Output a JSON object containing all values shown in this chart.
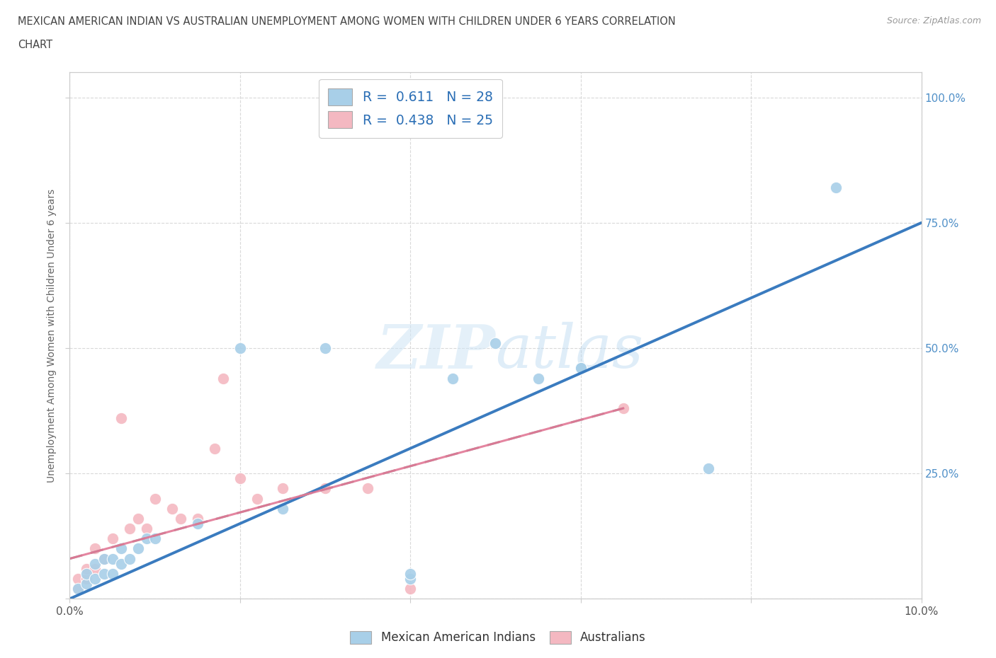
{
  "title_line1": "MEXICAN AMERICAN INDIAN VS AUSTRALIAN UNEMPLOYMENT AMONG WOMEN WITH CHILDREN UNDER 6 YEARS CORRELATION",
  "title_line2": "CHART",
  "source": "Source: ZipAtlas.com",
  "ylabel_label": "Unemployment Among Women with Children Under 6 years",
  "xlim": [
    0.0,
    0.1
  ],
  "ylim": [
    0.0,
    1.05
  ],
  "x_ticks": [
    0.0,
    0.02,
    0.04,
    0.06,
    0.08,
    0.1
  ],
  "x_tick_labels": [
    "0.0%",
    "",
    "",
    "",
    "",
    "10.0%"
  ],
  "y_ticks": [
    0.0,
    0.25,
    0.5,
    0.75,
    1.0
  ],
  "y_tick_labels_left": [
    "",
    "",
    "",
    "",
    ""
  ],
  "y_tick_labels_right": [
    "",
    "25.0%",
    "50.0%",
    "75.0%",
    "100.0%"
  ],
  "blue_color": "#a8cfe8",
  "pink_color": "#f4b8c1",
  "blue_line_color": "#3a7bbf",
  "pink_line_color": "#e07090",
  "dashed_line_color": "#b0b0b0",
  "grid_color": "#d0d0d0",
  "blue_scatter_x": [
    0.001,
    0.002,
    0.002,
    0.003,
    0.003,
    0.004,
    0.004,
    0.005,
    0.005,
    0.006,
    0.006,
    0.007,
    0.008,
    0.009,
    0.01,
    0.015,
    0.02,
    0.025,
    0.03,
    0.04,
    0.04,
    0.045,
    0.05,
    0.055,
    0.06,
    0.06,
    0.075,
    0.09
  ],
  "blue_scatter_y": [
    0.02,
    0.03,
    0.05,
    0.04,
    0.07,
    0.05,
    0.08,
    0.05,
    0.08,
    0.07,
    0.1,
    0.08,
    0.1,
    0.12,
    0.12,
    0.15,
    0.5,
    0.18,
    0.5,
    0.04,
    0.05,
    0.44,
    0.51,
    0.44,
    0.46,
    0.46,
    0.26,
    0.82
  ],
  "pink_scatter_x": [
    0.001,
    0.001,
    0.002,
    0.002,
    0.003,
    0.003,
    0.004,
    0.005,
    0.006,
    0.007,
    0.008,
    0.009,
    0.01,
    0.012,
    0.013,
    0.015,
    0.017,
    0.018,
    0.02,
    0.022,
    0.025,
    0.03,
    0.035,
    0.04,
    0.065
  ],
  "pink_scatter_y": [
    0.02,
    0.04,
    0.04,
    0.06,
    0.06,
    0.1,
    0.08,
    0.12,
    0.36,
    0.14,
    0.16,
    0.14,
    0.2,
    0.18,
    0.16,
    0.16,
    0.3,
    0.44,
    0.24,
    0.2,
    0.22,
    0.22,
    0.22,
    0.02,
    0.38
  ],
  "blue_line_x0": 0.0,
  "blue_line_y0": 0.0,
  "blue_line_x1": 0.1,
  "blue_line_y1": 0.75,
  "pink_line_x0": 0.0,
  "pink_line_y0": 0.08,
  "pink_line_x1": 0.065,
  "pink_line_y1": 0.38
}
